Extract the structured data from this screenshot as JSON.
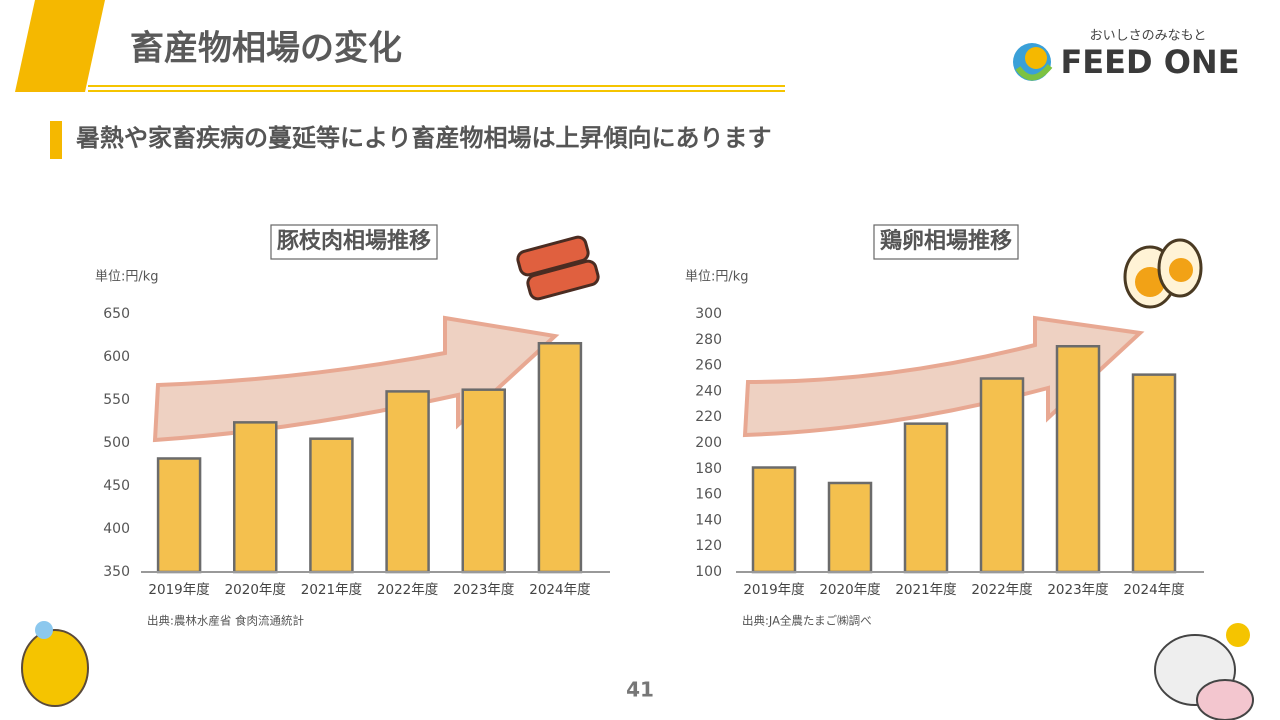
{
  "header": {
    "title": "畜産物相場の変化",
    "subtitle": "暑熱や家畜疾病の蔓延等により畜産物相場は上昇傾向にあります"
  },
  "logo": {
    "tagline": "おいしさのみなもと",
    "name": "FEED ONE"
  },
  "page_number": "41",
  "chart_data": [
    {
      "type": "bar",
      "title": "豚枝肉相場推移",
      "unit": "単位:円/kg",
      "source": "出典:農林水産省 食肉流通統計",
      "categories": [
        "2019年度",
        "2020年度",
        "2021年度",
        "2022年度",
        "2023年度",
        "2024年度"
      ],
      "values": [
        482,
        524,
        505,
        560,
        562,
        616
      ],
      "color": "#f4c04e",
      "ylim": [
        350,
        650
      ],
      "yticks": [
        350,
        400,
        450,
        500,
        550,
        600,
        650
      ]
    },
    {
      "type": "bar",
      "title": "鶏卵相場推移",
      "unit": "単位:円/kg",
      "source": "出典:JA全農たまご㈱調べ",
      "categories": [
        "2019年度",
        "2020年度",
        "2021年度",
        "2022年度",
        "2023年度",
        "2024年度"
      ],
      "values": [
        181,
        169,
        215,
        250,
        275,
        253
      ],
      "color": "#f4c04e",
      "ylim": [
        100,
        300
      ],
      "yticks": [
        100,
        120,
        140,
        160,
        180,
        200,
        220,
        240,
        260,
        280,
        300
      ]
    }
  ]
}
